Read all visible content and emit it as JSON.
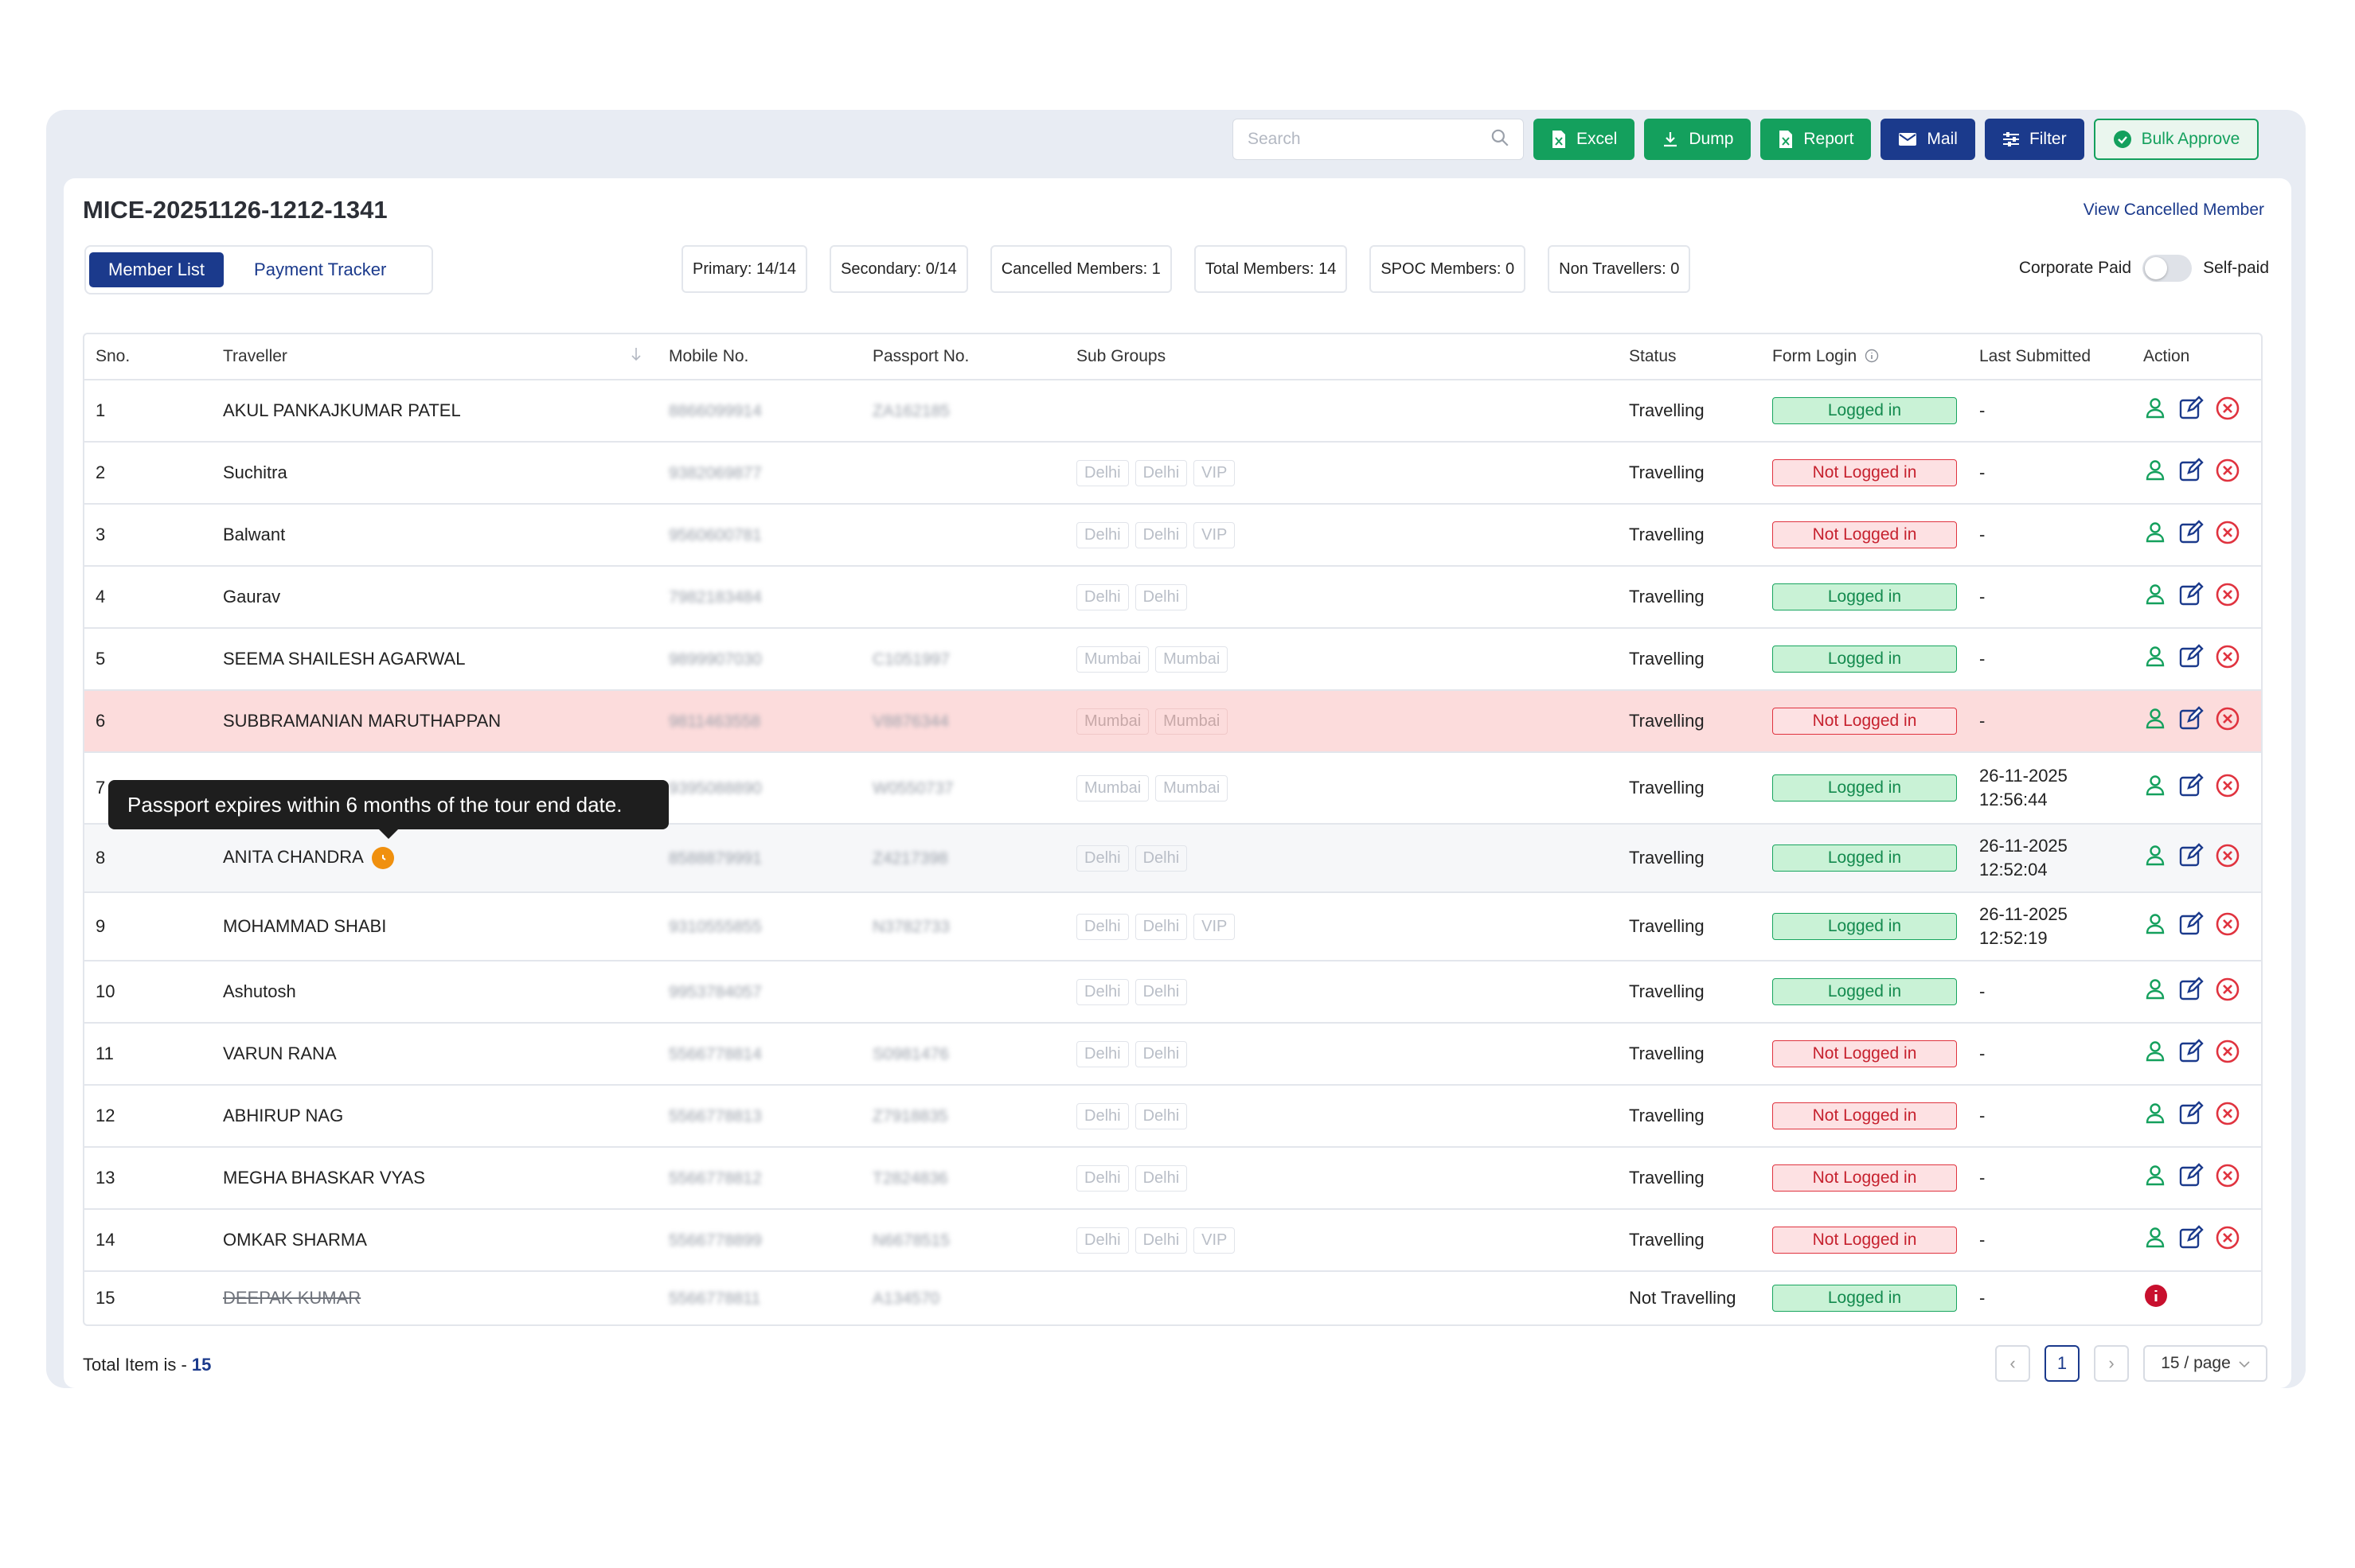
{
  "toolbar": {
    "search_placeholder": "Search",
    "buttons": [
      {
        "label": "Excel",
        "icon": "excel-file-icon"
      },
      {
        "label": "Dump",
        "icon": "download-icon"
      },
      {
        "label": "Report",
        "icon": "report-file-icon"
      },
      {
        "label": "Mail",
        "icon": "mail-icon"
      },
      {
        "label": "Filter",
        "icon": "filter-sliders-icon"
      },
      {
        "label": "Bulk Approve",
        "icon": "check-circle-icon"
      }
    ]
  },
  "header": {
    "title": "MICE-20251126-1212-1341",
    "view_cancelled": "View Cancelled Member"
  },
  "tabs": {
    "member_list": "Member List",
    "payment_tracker": "Payment Tracker"
  },
  "stats": [
    "Primary: 14/14",
    "Secondary: 0/14",
    "Cancelled Members: 1",
    "Total Members: 14",
    "SPOC Members: 0",
    "Non Travellers: 0"
  ],
  "payment_toggle": {
    "left": "Corporate Paid",
    "right": "Self-paid"
  },
  "colors": {
    "navy": "#1b3a8c",
    "green": "#14a05d",
    "red": "#e0333f",
    "warning": "#f0900f",
    "highlight_row": "#fcdcdc"
  },
  "table": {
    "headers": {
      "sno": "Sno.",
      "traveller": "Traveller",
      "mobile": "Mobile No.",
      "passport": "Passport No.",
      "subgroups": "Sub Groups",
      "status": "Status",
      "form_login": "Form Login",
      "last_submitted": "Last Submitted",
      "action": "Action"
    },
    "rows": [
      {
        "sno": "1",
        "name": "AKUL PANKAJKUMAR PATEL",
        "mobile": "8866099914",
        "passport": "ZA162185",
        "groups": [],
        "status": "Travelling",
        "login": "Logged in",
        "last": [
          "-"
        ]
      },
      {
        "sno": "2",
        "name": "Suchitra",
        "mobile": "9382069877",
        "passport": "",
        "groups": [
          "Delhi",
          "Delhi",
          "VIP"
        ],
        "status": "Travelling",
        "login": "Not Logged in",
        "last": [
          "-"
        ]
      },
      {
        "sno": "3",
        "name": "Balwant",
        "mobile": "9560600781",
        "passport": "",
        "groups": [
          "Delhi",
          "Delhi",
          "VIP"
        ],
        "status": "Travelling",
        "login": "Not Logged in",
        "last": [
          "-"
        ]
      },
      {
        "sno": "4",
        "name": "Gaurav",
        "mobile": "7982183484",
        "passport": "",
        "groups": [
          "Delhi",
          "Delhi"
        ],
        "status": "Travelling",
        "login": "Logged in",
        "last": [
          "-"
        ]
      },
      {
        "sno": "5",
        "name": "SEEMA SHAILESH AGARWAL",
        "mobile": "9899907030",
        "passport": "C1051997",
        "groups": [
          "Mumbai",
          "Mumbai"
        ],
        "status": "Travelling",
        "login": "Logged in",
        "last": [
          "-"
        ]
      },
      {
        "sno": "6",
        "name": "SUBBRAMANIAN MARUTHAPPAN",
        "mobile": "9811463558",
        "passport": "V8876344",
        "groups": [
          "Mumbai",
          "Mumbai"
        ],
        "status": "Travelling",
        "login": "Not Logged in",
        "last": [
          "-"
        ]
      },
      {
        "sno": "7",
        "name": "",
        "mobile": "9395088890",
        "passport": "W0550737",
        "groups": [
          "Mumbai",
          "Mumbai"
        ],
        "status": "Travelling",
        "login": "Logged in",
        "last": [
          "26-11-2025",
          "12:56:44"
        ]
      },
      {
        "sno": "8",
        "name": "ANITA CHANDRA",
        "mobile": "8588879991",
        "passport": "Z4217398",
        "groups": [
          "Delhi",
          "Delhi"
        ],
        "status": "Travelling",
        "login": "Logged in",
        "last": [
          "26-11-2025",
          "12:52:04"
        ]
      },
      {
        "sno": "9",
        "name": "MOHAMMAD SHABI",
        "mobile": "9310555855",
        "passport": "N3782733",
        "groups": [
          "Delhi",
          "Delhi",
          "VIP"
        ],
        "status": "Travelling",
        "login": "Logged in",
        "last": [
          "26-11-2025",
          "12:52:19"
        ]
      },
      {
        "sno": "10",
        "name": "Ashutosh",
        "mobile": "9953784057",
        "passport": "",
        "groups": [
          "Delhi",
          "Delhi"
        ],
        "status": "Travelling",
        "login": "Logged in",
        "last": [
          "-"
        ]
      },
      {
        "sno": "11",
        "name": "VARUN RANA",
        "mobile": "5566778814",
        "passport": "S0981476",
        "groups": [
          "Delhi",
          "Delhi"
        ],
        "status": "Travelling",
        "login": "Not Logged in",
        "last": [
          "-"
        ]
      },
      {
        "sno": "12",
        "name": "ABHIRUP NAG",
        "mobile": "5566778813",
        "passport": "Z7918835",
        "groups": [
          "Delhi",
          "Delhi"
        ],
        "status": "Travelling",
        "login": "Not Logged in",
        "last": [
          "-"
        ]
      },
      {
        "sno": "13",
        "name": "MEGHA BHASKAR VYAS",
        "mobile": "5566778812",
        "passport": "T2824836",
        "groups": [
          "Delhi",
          "Delhi"
        ],
        "status": "Travelling",
        "login": "Not Logged in",
        "last": [
          "-"
        ]
      },
      {
        "sno": "14",
        "name": "OMKAR SHARMA",
        "mobile": "5566778899",
        "passport": "N6678515",
        "groups": [
          "Delhi",
          "Delhi",
          "VIP"
        ],
        "status": "Travelling",
        "login": "Not Logged in",
        "last": [
          "-"
        ]
      },
      {
        "sno": "15",
        "name": "DEEPAK KUMAR",
        "mobile": "5566778811",
        "passport": "A134570",
        "groups": [],
        "status": "Not Travelling",
        "login": "Logged in",
        "last": [
          "-"
        ]
      }
    ]
  },
  "tooltip": "Passport expires within 6 months of the tour end date.",
  "footer": {
    "total_label": "Total Item is - ",
    "total_value": "15",
    "page": "1",
    "page_size": "15 / page"
  }
}
